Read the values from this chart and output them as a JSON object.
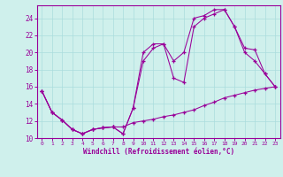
{
  "xlabel": "Windchill (Refroidissement éolien,°C)",
  "bg_color": "#cff0ec",
  "line_color": "#990099",
  "grid_color": "#aadddd",
  "xlim": [
    -0.5,
    23.5
  ],
  "ylim": [
    10,
    25.5
  ],
  "yticks": [
    10,
    12,
    14,
    16,
    18,
    20,
    22,
    24
  ],
  "xticks": [
    0,
    1,
    2,
    3,
    4,
    5,
    6,
    7,
    8,
    9,
    10,
    11,
    12,
    13,
    14,
    15,
    16,
    17,
    18,
    19,
    20,
    21,
    22,
    23
  ],
  "s1_x": [
    0,
    1,
    2,
    3,
    4,
    5,
    6,
    7,
    8,
    9,
    10,
    11,
    12,
    13,
    14,
    15,
    16,
    17,
    18,
    19,
    20,
    21,
    22,
    23
  ],
  "s1_y": [
    15.5,
    13.0,
    12.1,
    11.0,
    10.5,
    11.0,
    11.2,
    11.3,
    11.3,
    11.8,
    12.0,
    12.2,
    12.5,
    12.7,
    13.0,
    13.3,
    13.8,
    14.2,
    14.7,
    15.0,
    15.3,
    15.6,
    15.8,
    16.0
  ],
  "s2_x": [
    0,
    1,
    2,
    3,
    4,
    5,
    6,
    7,
    8,
    9,
    10,
    11,
    12,
    13,
    14,
    15,
    16,
    17,
    18,
    19,
    20,
    21,
    22,
    23
  ],
  "s2_y": [
    15.5,
    13.0,
    12.1,
    11.0,
    10.5,
    11.0,
    11.2,
    11.3,
    10.5,
    13.5,
    19.0,
    20.5,
    21.0,
    17.0,
    16.5,
    23.0,
    24.0,
    24.5,
    25.0,
    23.0,
    20.0,
    19.0,
    17.5,
    16.0
  ],
  "s3_x": [
    0,
    1,
    2,
    3,
    4,
    5,
    6,
    7,
    8,
    9,
    10,
    11,
    12,
    13,
    14,
    15,
    16,
    17,
    18,
    19,
    20,
    21,
    22,
    23
  ],
  "s3_y": [
    15.5,
    13.0,
    12.1,
    11.0,
    10.5,
    11.0,
    11.2,
    11.3,
    10.5,
    13.5,
    20.0,
    21.0,
    21.0,
    19.0,
    20.0,
    24.0,
    24.3,
    25.0,
    25.0,
    23.0,
    20.5,
    20.3,
    17.5,
    16.0
  ]
}
